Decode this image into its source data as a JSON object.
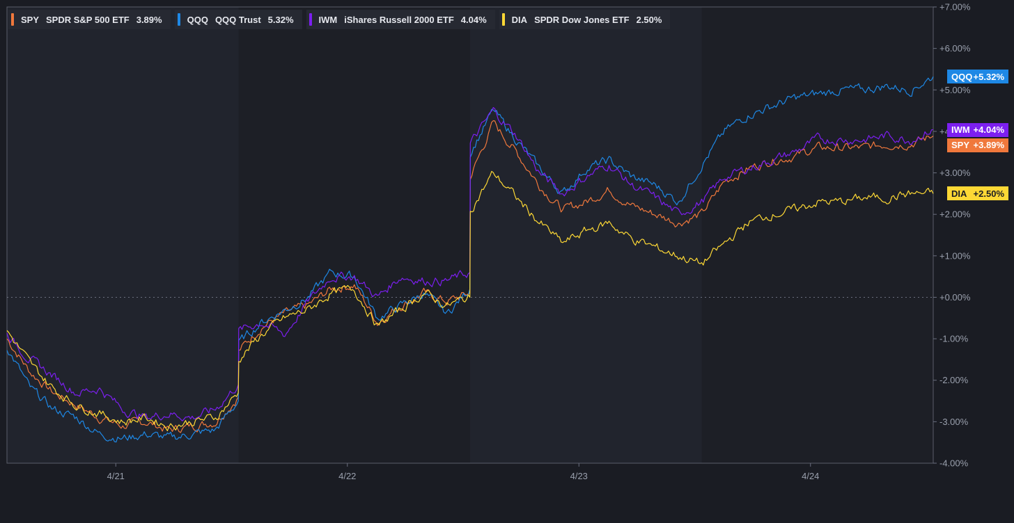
{
  "legend": [
    {
      "ticker": "SPY",
      "name": "SPDR S&P 500 ETF",
      "change": "3.89%",
      "color": "#f0783c"
    },
    {
      "ticker": "QQQ",
      "name": "QQQ Trust",
      "change": "5.32%",
      "color": "#1e88e5"
    },
    {
      "ticker": "IWM",
      "name": "iShares Russell 2000 ETF",
      "change": "4.04%",
      "color": "#7c1ff0"
    },
    {
      "ticker": "DIA",
      "name": "SPDR Dow Jones ETF",
      "change": "2.50%",
      "color": "#fdd835"
    }
  ],
  "end_tags": [
    {
      "ticker": "QQQ",
      "change": "+5.32%",
      "value": 5.32,
      "color": "#1e88e5",
      "text": "light"
    },
    {
      "ticker": "IWM",
      "change": "+4.04%",
      "value": 4.04,
      "color": "#7c1ff0",
      "text": "light"
    },
    {
      "ticker": "SPY",
      "change": "+3.89%",
      "value": 3.89,
      "color": "#f0783c",
      "text": "light"
    },
    {
      "ticker": "DIA",
      "change": "+2.50%",
      "value": 2.5,
      "color": "#fdd835",
      "text": "dark"
    }
  ],
  "chart_data": {
    "type": "line",
    "yaxis_side": "right",
    "ylim": [
      -4.0,
      7.0
    ],
    "yticks": [
      7,
      6,
      5,
      4,
      3,
      2,
      1,
      0,
      -1,
      -2,
      -3,
      -4
    ],
    "ytick_labels": [
      "+7.00%",
      "+6.00%",
      "+5.00%",
      "+4.00%",
      "+3.00%",
      "+2.00%",
      "+1.00%",
      "+0.00%",
      "-1.00%",
      "-2.00%",
      "-3.00%",
      "-4.00%"
    ],
    "x_categories": [
      "4/21",
      "4/22",
      "4/23",
      "4/24"
    ],
    "xlim": [
      0,
      4
    ],
    "shaded_sessions": [
      1,
      3
    ],
    "zero_line": "dotted",
    "series": [
      {
        "name": "SPY",
        "color": "#f0783c",
        "x": [
          0,
          0.1,
          0.2,
          0.3,
          0.4,
          0.5,
          0.6,
          0.7,
          0.8,
          0.9,
          0.999,
          1.001,
          1.1,
          1.2,
          1.3,
          1.4,
          1.5,
          1.6,
          1.7,
          1.8,
          1.9,
          1.999,
          2.001,
          2.1,
          2.2,
          2.3,
          2.4,
          2.5,
          2.6,
          2.7,
          2.8,
          2.9,
          3.0,
          3.1,
          3.2,
          3.3,
          3.4,
          3.5,
          3.6,
          3.7,
          3.8,
          3.9,
          4.0
        ],
        "y": [
          -1.0,
          -1.8,
          -2.3,
          -2.6,
          -2.9,
          -3.1,
          -3.0,
          -3.2,
          -3.1,
          -3.0,
          -2.4,
          -1.3,
          -0.7,
          -0.4,
          -0.2,
          0.2,
          0.3,
          -0.6,
          -0.2,
          0.1,
          -0.1,
          0.1,
          2.9,
          4.2,
          3.5,
          2.7,
          2.1,
          2.3,
          2.6,
          2.2,
          2.0,
          1.8,
          2.0,
          2.8,
          3.1,
          3.3,
          3.4,
          3.6,
          3.6,
          3.6,
          3.7,
          3.7,
          3.89
        ]
      },
      {
        "name": "QQQ",
        "color": "#1e88e5",
        "x": [
          0,
          0.1,
          0.2,
          0.3,
          0.4,
          0.5,
          0.6,
          0.7,
          0.8,
          0.9,
          0.999,
          1.001,
          1.1,
          1.2,
          1.3,
          1.4,
          1.5,
          1.6,
          1.7,
          1.8,
          1.9,
          1.999,
          2.001,
          2.1,
          2.2,
          2.3,
          2.4,
          2.5,
          2.6,
          2.7,
          2.8,
          2.9,
          3.0,
          3.1,
          3.2,
          3.3,
          3.4,
          3.5,
          3.6,
          3.7,
          3.8,
          3.9,
          4.0
        ],
        "y": [
          -1.2,
          -2.2,
          -2.7,
          -2.9,
          -3.3,
          -3.4,
          -3.3,
          -3.4,
          -3.3,
          -3.2,
          -2.5,
          -1.1,
          -0.6,
          -0.3,
          0.0,
          0.6,
          0.5,
          -0.5,
          -0.2,
          0.1,
          -0.4,
          0.2,
          3.5,
          4.5,
          3.8,
          3.1,
          2.5,
          3.1,
          3.3,
          2.9,
          2.7,
          2.3,
          3.2,
          4.0,
          4.4,
          4.6,
          4.8,
          4.9,
          5.0,
          5.0,
          5.1,
          5.0,
          5.32
        ]
      },
      {
        "name": "IWM",
        "color": "#7c1ff0",
        "x": [
          0,
          0.1,
          0.2,
          0.3,
          0.4,
          0.5,
          0.6,
          0.7,
          0.8,
          0.9,
          0.999,
          1.001,
          1.1,
          1.2,
          1.3,
          1.4,
          1.5,
          1.6,
          1.7,
          1.8,
          1.9,
          1.999,
          2.001,
          2.1,
          2.2,
          2.3,
          2.4,
          2.5,
          2.6,
          2.7,
          2.8,
          2.9,
          3.0,
          3.1,
          3.2,
          3.3,
          3.4,
          3.5,
          3.6,
          3.7,
          3.8,
          3.9,
          4.0
        ],
        "y": [
          -0.9,
          -1.5,
          -1.9,
          -2.3,
          -2.2,
          -2.7,
          -2.9,
          -2.8,
          -2.9,
          -2.7,
          -2.1,
          -0.8,
          -0.6,
          -0.9,
          -0.1,
          0.5,
          0.5,
          0.0,
          0.5,
          0.4,
          0.4,
          0.6,
          3.7,
          4.5,
          3.9,
          3.0,
          2.5,
          2.9,
          3.2,
          2.7,
          2.4,
          2.0,
          2.3,
          2.9,
          3.1,
          3.3,
          3.5,
          3.8,
          3.8,
          3.8,
          3.9,
          3.8,
          4.04
        ]
      },
      {
        "name": "DIA",
        "color": "#fdd835",
        "x": [
          0,
          0.1,
          0.2,
          0.3,
          0.4,
          0.5,
          0.6,
          0.7,
          0.8,
          0.9,
          0.999,
          1.001,
          1.1,
          1.2,
          1.3,
          1.4,
          1.5,
          1.6,
          1.7,
          1.8,
          1.9,
          1.999,
          2.001,
          2.1,
          2.2,
          2.3,
          2.4,
          2.5,
          2.6,
          2.7,
          2.8,
          2.9,
          3.0,
          3.1,
          3.2,
          3.3,
          3.4,
          3.5,
          3.6,
          3.7,
          3.8,
          3.9,
          4.0
        ],
        "y": [
          -0.8,
          -1.6,
          -2.2,
          -2.6,
          -2.8,
          -3.0,
          -2.9,
          -3.1,
          -3.0,
          -2.9,
          -2.3,
          -1.5,
          -0.9,
          -0.5,
          -0.3,
          0.1,
          0.2,
          -0.7,
          -0.3,
          0.1,
          -0.2,
          0.0,
          2.1,
          3.0,
          2.4,
          1.8,
          1.3,
          1.6,
          1.8,
          1.4,
          1.2,
          1.0,
          0.8,
          1.3,
          1.8,
          2.0,
          2.1,
          2.3,
          2.3,
          2.4,
          2.4,
          2.5,
          2.5
        ]
      }
    ]
  }
}
